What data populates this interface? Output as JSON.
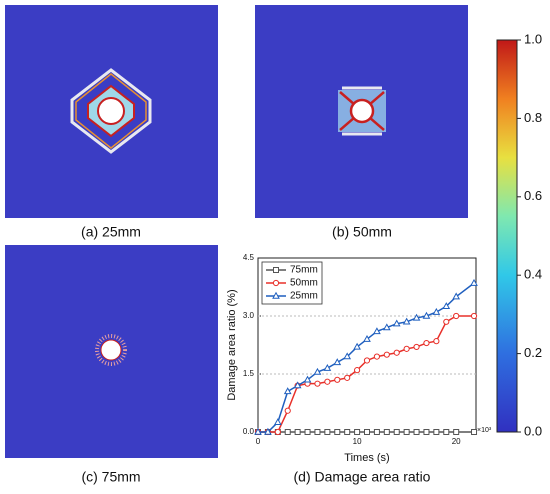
{
  "panels": [
    {
      "caption": "(a) 25mm"
    },
    {
      "caption": "(b) 50mm"
    },
    {
      "caption": "(c) 75mm"
    }
  ],
  "chart_data": {
    "type": "line",
    "caption": "(d) Damage area ratio",
    "x_label": "Times (s)",
    "y_label": "Damage area ratio (%)",
    "x_multiplier_label": "×10³",
    "xlim": [
      0,
      22
    ],
    "xticks": [
      0,
      10,
      20
    ],
    "ylim": [
      0,
      4.5
    ],
    "yticks": [
      {
        "value": 0,
        "label": "0.0"
      },
      {
        "value": 1.5,
        "label": "1.5"
      },
      {
        "value": 3,
        "label": "3.0"
      },
      {
        "value": 4.5,
        "label": "4.5"
      }
    ],
    "grid": true,
    "legend": "upper left",
    "x": [
      0,
      1,
      2,
      3,
      4,
      5,
      6,
      7,
      8,
      9,
      10,
      11,
      12,
      13,
      14,
      15,
      16,
      17,
      18,
      19,
      20,
      21.8
    ],
    "series": [
      {
        "name": "75mm",
        "color": "#555555",
        "marker": "square",
        "values": [
          0,
          0,
          0,
          0,
          0,
          0,
          0,
          0,
          0,
          0,
          0,
          0,
          0,
          0,
          0,
          0,
          0,
          0,
          0,
          0,
          0,
          0
        ]
      },
      {
        "name": "50mm",
        "color": "#e8302a",
        "marker": "circle",
        "values": [
          0,
          0,
          0,
          0.55,
          1.2,
          1.25,
          1.25,
          1.3,
          1.35,
          1.4,
          1.6,
          1.85,
          1.95,
          2.0,
          2.05,
          2.15,
          2.2,
          2.3,
          2.35,
          2.85,
          3.0,
          3.0
        ]
      },
      {
        "name": "25mm",
        "color": "#1f5fbf",
        "marker": "triangle",
        "values": [
          0,
          0,
          0.25,
          1.05,
          1.2,
          1.35,
          1.55,
          1.65,
          1.8,
          1.95,
          2.2,
          2.4,
          2.6,
          2.7,
          2.8,
          2.85,
          2.95,
          3.0,
          3.1,
          3.25,
          3.5,
          3.85
        ]
      }
    ]
  },
  "colorbar": {
    "lim": [
      0,
      1
    ],
    "ticks": [
      {
        "value": 0,
        "label": "0.0"
      },
      {
        "value": 0.2,
        "label": "0.2"
      },
      {
        "value": 0.4,
        "label": "0.4"
      },
      {
        "value": 0.6,
        "label": "0.6"
      },
      {
        "value": 0.8,
        "label": "0.8"
      },
      {
        "value": 1,
        "label": "1.0"
      }
    ]
  }
}
